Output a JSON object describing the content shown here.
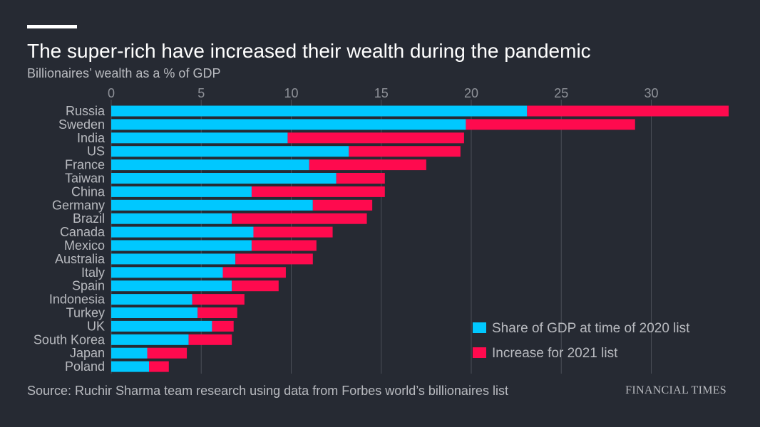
{
  "title": "The super-rich have increased their wealth during the pandemic",
  "subtitle": "Billionaires’ wealth as a % of GDP",
  "source": "Source: Ruchir Sharma team research using data from Forbes world’s billionaires list",
  "brand": "FINANCIAL TIMES",
  "colors": {
    "background": "#262a33",
    "share_2020": "#00c8ff",
    "increase_2021": "#ff0a4e",
    "grid": "#4a4e57"
  },
  "chart_data": {
    "type": "bar",
    "orientation": "horizontal",
    "stacked": true,
    "categories": [
      "Russia",
      "Sweden",
      "India",
      "US",
      "France",
      "Taiwan",
      "China",
      "Germany",
      "Brazil",
      "Canada",
      "Mexico",
      "Australia",
      "Italy",
      "Spain",
      "Indonesia",
      "Turkey",
      "UK",
      "South Korea",
      "Japan",
      "Poland"
    ],
    "series": [
      {
        "name": "Share of GDP at time of 2020 list",
        "color": "#00c8ff",
        "values": [
          23.1,
          19.7,
          9.8,
          13.2,
          11.0,
          12.5,
          7.8,
          11.2,
          6.7,
          7.9,
          7.8,
          6.9,
          6.2,
          6.7,
          4.5,
          4.8,
          5.6,
          4.3,
          2.0,
          2.1
        ]
      },
      {
        "name": "Increase for 2021 list",
        "color": "#ff0a4e",
        "values": [
          11.2,
          9.4,
          9.8,
          6.2,
          6.5,
          2.7,
          7.4,
          3.3,
          7.5,
          4.4,
          3.6,
          4.3,
          3.5,
          2.6,
          2.9,
          2.2,
          1.2,
          2.4,
          2.2,
          1.1
        ]
      }
    ],
    "xaxis": {
      "ticks": [
        0,
        5,
        10,
        15,
        20,
        25,
        30
      ],
      "range": [
        0,
        34.5
      ],
      "position": "top"
    },
    "grid": true,
    "legend_position": "bottom-right"
  }
}
